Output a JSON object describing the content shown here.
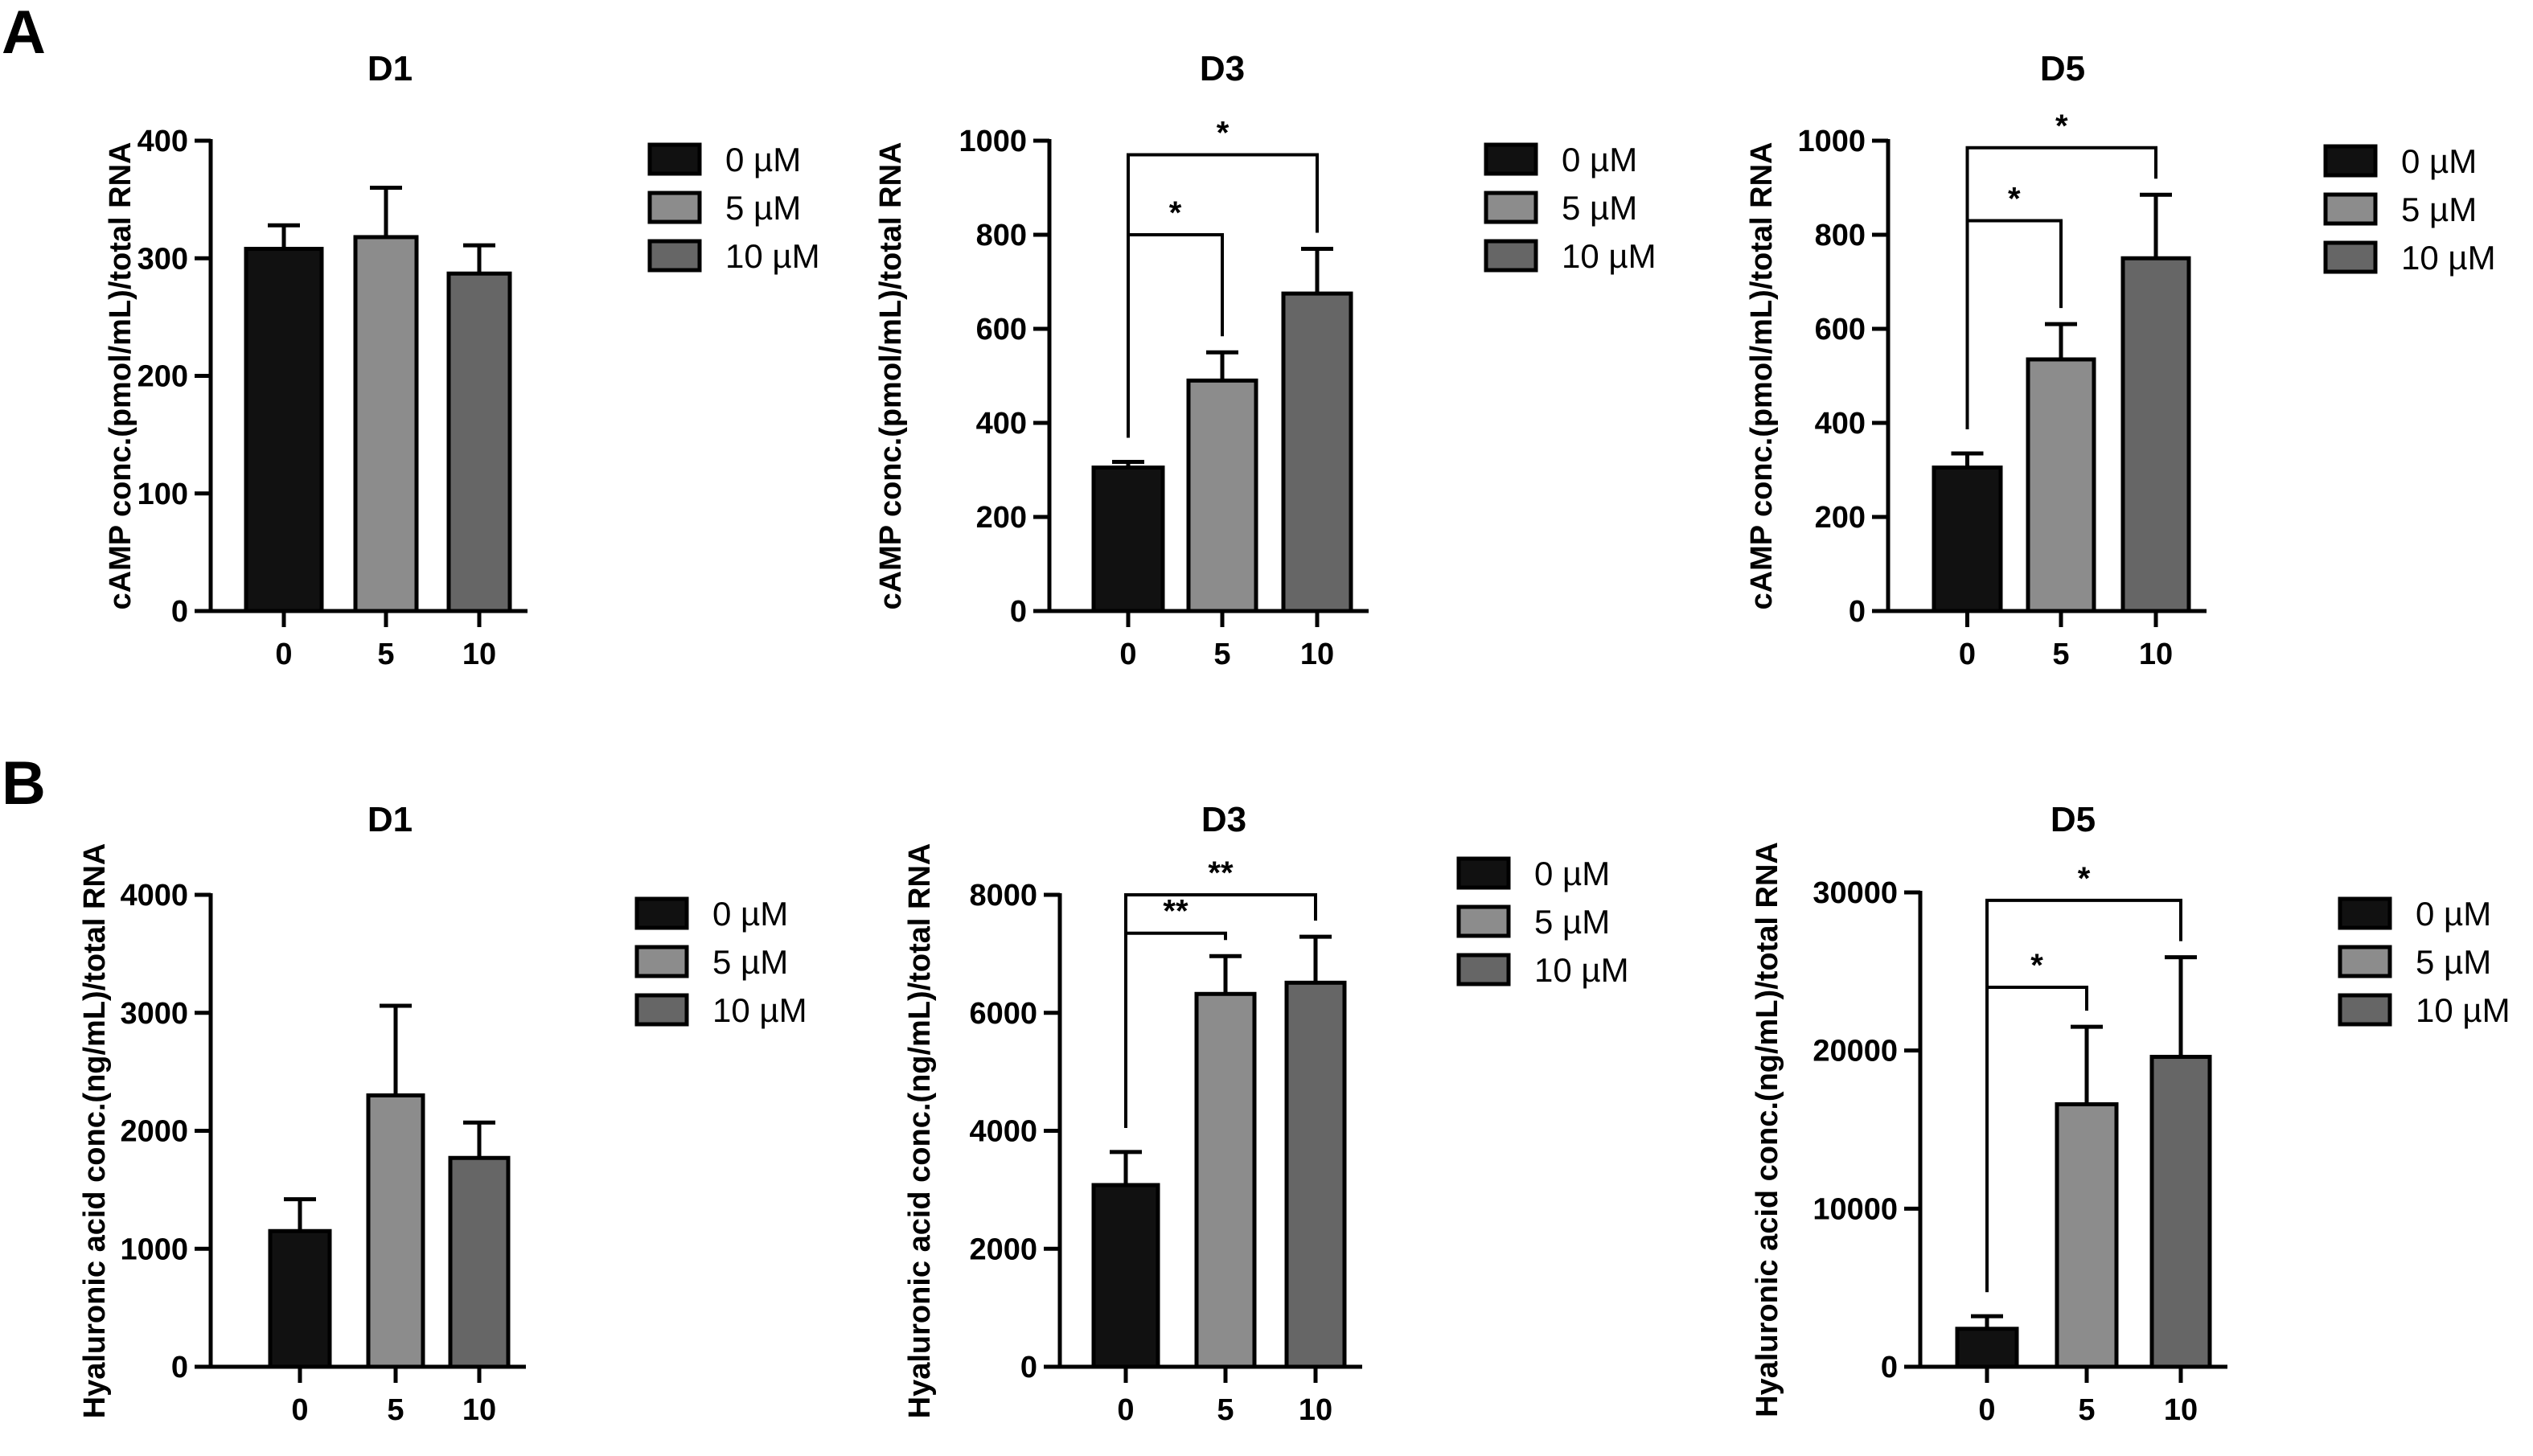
{
  "panels": [
    {
      "letter": "A"
    },
    {
      "letter": "B"
    }
  ],
  "colors": {
    "0 µM": "#111111",
    "5 µM": "#8c8c8c",
    "10 µM": "#666666",
    "axis": "#000000"
  },
  "chart_data": [
    {
      "type": "bar",
      "panel": "A",
      "title": "D1",
      "ylabel": "cAMP conc.(pmol/mL)/total RNA",
      "categories": [
        "0",
        "5",
        "10"
      ],
      "values": [
        308,
        318,
        287
      ],
      "errors": [
        20,
        42,
        24
      ],
      "ylim": [
        0,
        400
      ],
      "yticks": [
        0,
        100,
        200,
        300,
        400
      ],
      "legend": [
        "0 µM",
        "5 µM",
        "10 µM"
      ],
      "legend_position": "right",
      "significance": []
    },
    {
      "type": "bar",
      "panel": "A",
      "title": "D3",
      "ylabel": "cAMP conc.(pmol/mL)/total RNA",
      "categories": [
        "0",
        "5",
        "10"
      ],
      "values": [
        305,
        490,
        675
      ],
      "errors": [
        12,
        60,
        95
      ],
      "ylim": [
        0,
        1000
      ],
      "yticks": [
        0,
        200,
        400,
        600,
        800,
        1000
      ],
      "legend": [
        "0 µM",
        "5 µM",
        "10 µM"
      ],
      "legend_position": "right",
      "significance": [
        {
          "from": 0,
          "to": 1,
          "label": "*",
          "y": 800
        },
        {
          "from": 0,
          "to": 2,
          "label": "*",
          "y": 970
        }
      ]
    },
    {
      "type": "bar",
      "panel": "A",
      "title": "D5",
      "ylabel": "cAMP conc.(pmol/mL)/total RNA",
      "categories": [
        "0",
        "5",
        "10"
      ],
      "values": [
        305,
        535,
        750
      ],
      "errors": [
        30,
        75,
        135
      ],
      "ylim": [
        0,
        1000
      ],
      "yticks": [
        0,
        200,
        400,
        600,
        800,
        1000
      ],
      "legend": [
        "0 µM",
        "5 µM",
        "10 µM"
      ],
      "legend_position": "right",
      "significance": [
        {
          "from": 0,
          "to": 1,
          "label": "*",
          "y": 830
        },
        {
          "from": 0,
          "to": 2,
          "label": "*",
          "y": 985
        }
      ]
    },
    {
      "type": "bar",
      "panel": "B",
      "title": "D1",
      "ylabel": "Hyaluronic acid conc.(ng/mL)/total RNA",
      "categories": [
        "0",
        "5",
        "10"
      ],
      "values": [
        1150,
        2300,
        1770
      ],
      "errors": [
        270,
        760,
        300
      ],
      "ylim": [
        0,
        4000
      ],
      "yticks": [
        0,
        1000,
        2000,
        3000,
        4000
      ],
      "legend": [
        "0 µM",
        "5 µM",
        "10 µM"
      ],
      "legend_position": "right",
      "significance": []
    },
    {
      "type": "bar",
      "panel": "B",
      "title": "D3",
      "ylabel": "Hyaluronic acid conc.(ng/mL)/total RNA",
      "categories": [
        "0",
        "5",
        "10"
      ],
      "values": [
        3080,
        6320,
        6510
      ],
      "errors": [
        560,
        640,
        780
      ],
      "ylim": [
        0,
        8000
      ],
      "yticks": [
        0,
        2000,
        4000,
        6000,
        8000
      ],
      "legend": [
        "0 µM",
        "5 µM",
        "10 µM"
      ],
      "legend_position": "right",
      "significance": [
        {
          "from": 0,
          "to": 1,
          "label": "**",
          "y": 7350
        },
        {
          "from": 0,
          "to": 2,
          "label": "**",
          "y": 8000
        }
      ]
    },
    {
      "type": "bar",
      "panel": "B",
      "title": "D5",
      "ylabel": "Hyaluronic acid conc.(ng/mL)/total RNA",
      "categories": [
        "0",
        "5",
        "10"
      ],
      "values": [
        2400,
        16600,
        19600
      ],
      "errors": [
        800,
        4900,
        6300
      ],
      "ylim": [
        0,
        30000
      ],
      "yticks": [
        0,
        10000,
        20000,
        30000
      ],
      "legend": [
        "0 µM",
        "5 µM",
        "10 µM"
      ],
      "legend_position": "right",
      "significance": [
        {
          "from": 0,
          "to": 1,
          "label": "*",
          "y": 24000
        },
        {
          "from": 0,
          "to": 2,
          "label": "*",
          "y": 29500
        }
      ]
    }
  ]
}
